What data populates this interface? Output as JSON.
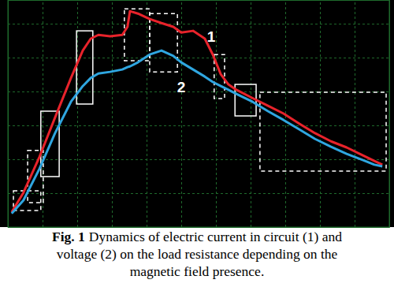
{
  "chart_data": {
    "type": "line",
    "caption_label": "Fig. 1",
    "caption": [
      "Dynamics of electric current in circuit (1) and",
      "voltage (2) on the load resistance depending on the",
      "magnetic field presence."
    ],
    "x": [
      0.11,
      0.45,
      0.91,
      1.36,
      1.82,
      2.16,
      2.39,
      2.61,
      2.95,
      3.3,
      3.45,
      3.52,
      3.75,
      4.09,
      4.43,
      4.77,
      5.0,
      5.34,
      5.68,
      5.91,
      6.14,
      6.36,
      6.59,
      7.05,
      7.5,
      7.95,
      8.41,
      8.86,
      9.32,
      9.77,
      10.23,
      10.57,
      10.8
    ],
    "xlim": [
      0,
      11
    ],
    "xticks": [
      0,
      1,
      2,
      3,
      4,
      5,
      6,
      7,
      8,
      9,
      10,
      11
    ],
    "ylim": [
      0,
      6.7
    ],
    "yticks": [
      0,
      1,
      2,
      3,
      4,
      5,
      6
    ],
    "grid": true,
    "tick_labels": false,
    "series": [
      {
        "name": "1",
        "color": "#e8232b",
        "values": [
          0.44,
          1.02,
          2.07,
          3.23,
          4.4,
          5.21,
          5.56,
          5.67,
          5.63,
          5.67,
          5.91,
          6.37,
          6.3,
          6.14,
          6.02,
          5.91,
          5.74,
          5.79,
          5.56,
          5.09,
          4.51,
          4.21,
          4.05,
          3.81,
          3.58,
          3.35,
          3.05,
          2.77,
          2.53,
          2.35,
          2.12,
          1.95,
          1.84
        ]
      },
      {
        "name": "2",
        "color": "#2fa6e0",
        "values": [
          0.4,
          0.79,
          1.72,
          2.77,
          3.7,
          4.16,
          4.4,
          4.53,
          4.58,
          4.65,
          4.72,
          4.74,
          4.86,
          5.09,
          5.21,
          5.05,
          4.86,
          4.65,
          4.44,
          4.28,
          4.16,
          4.05,
          3.93,
          3.7,
          3.42,
          3.16,
          2.88,
          2.6,
          2.37,
          2.16,
          1.98,
          1.84,
          1.79
        ]
      }
    ],
    "regions": [
      {
        "x": [
          0.16,
          0.95
        ],
        "y": [
          0.49,
          1.07
        ],
        "line_style": "dashed"
      },
      {
        "x": [
          0.57,
          1.02
        ],
        "y": [
          0.72,
          2.26
        ],
        "line_style": "dashed"
      },
      {
        "x": [
          0.95,
          1.48
        ],
        "y": [
          1.49,
          3.42
        ],
        "line_style": "solid"
      },
      {
        "x": [
          1.98,
          2.45
        ],
        "y": [
          3.63,
          5.79
        ],
        "line_style": "solid"
      },
      {
        "x": [
          3.36,
          4.09
        ],
        "y": [
          4.91,
          6.44
        ],
        "line_style": "dashed"
      },
      {
        "x": [
          4.09,
          4.89
        ],
        "y": [
          4.58,
          6.3
        ],
        "line_style": "dashed"
      },
      {
        "x": [
          5.95,
          6.25
        ],
        "y": [
          3.79,
          5.09
        ],
        "line_style": "dashed"
      },
      {
        "x": [
          6.55,
          7.16
        ],
        "y": [
          3.28,
          4.21
        ],
        "line_style": "solid"
      },
      {
        "x": [
          7.27,
          10.91
        ],
        "y": [
          1.65,
          3.98
        ],
        "line_style": "dashed"
      }
    ]
  }
}
